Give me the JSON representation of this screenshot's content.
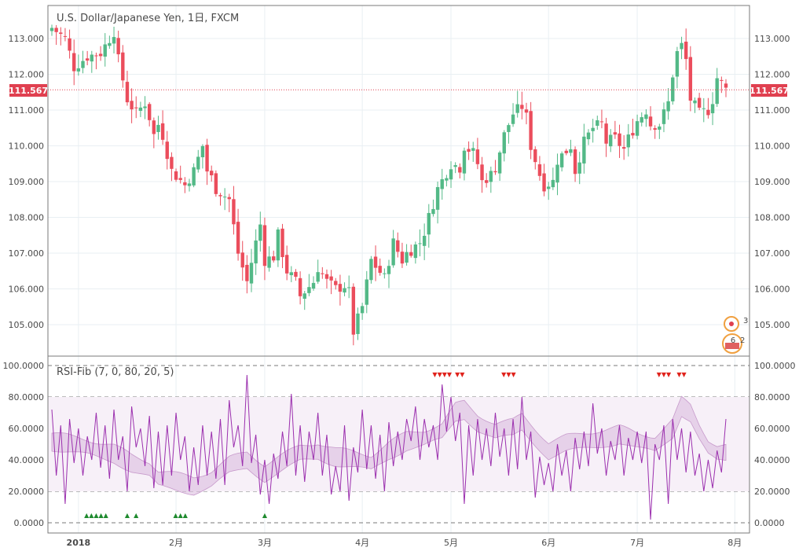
{
  "chart_data": [
    {
      "type": "candlestick",
      "title": "U.S. Dollar/Japanese Yen, 1日, FXCM",
      "last_price": "111.567",
      "last_value": 111.567,
      "y_ticks": [
        {
          "v": 113,
          "label": "113.000"
        },
        {
          "v": 112,
          "label": "112.000"
        },
        {
          "v": 111,
          "label": "111.000"
        },
        {
          "v": 110,
          "label": "110.000"
        },
        {
          "v": 109,
          "label": "109.000"
        },
        {
          "v": 108,
          "label": "108.000"
        },
        {
          "v": 107,
          "label": "107.000"
        },
        {
          "v": 106,
          "label": "106.000"
        },
        {
          "v": 105,
          "label": "105.000"
        }
      ],
      "close_path": [
        [
          0,
          113.3
        ],
        [
          3,
          113.0
        ],
        [
          5,
          112.2
        ],
        [
          8,
          112.5
        ],
        [
          11,
          112.6
        ],
        [
          14,
          113.2
        ],
        [
          15,
          112.4
        ],
        [
          17,
          111.3
        ],
        [
          19,
          110.9
        ],
        [
          21,
          111.2
        ],
        [
          22,
          110.8
        ],
        [
          23,
          110.3
        ],
        [
          24,
          110.6
        ],
        [
          25,
          110.3
        ],
        [
          27,
          109.3
        ],
        [
          30,
          108.9
        ],
        [
          32,
          109.3
        ],
        [
          34,
          110.0
        ],
        [
          35,
          109.3
        ],
        [
          36,
          109.1
        ],
        [
          37,
          108.8
        ],
        [
          40,
          108.5
        ],
        [
          42,
          107.0
        ],
        [
          44,
          106.2
        ],
        [
          46,
          107.3
        ],
        [
          47,
          107.8
        ],
        [
          48,
          106.8
        ],
        [
          50,
          106.9
        ],
        [
          51,
          107.5
        ],
        [
          53,
          106.5
        ],
        [
          55,
          106.2
        ],
        [
          56,
          105.8
        ],
        [
          59,
          106.2
        ],
        [
          60,
          106.6
        ],
        [
          62,
          106.2
        ],
        [
          64,
          106.0
        ],
        [
          66,
          106.1
        ],
        [
          67,
          105.9
        ],
        [
          68,
          104.8
        ],
        [
          70,
          105.5
        ],
        [
          72,
          106.8
        ],
        [
          75,
          106.3
        ],
        [
          77,
          107.3
        ],
        [
          79,
          106.8
        ],
        [
          80,
          107.0
        ],
        [
          83,
          107.3
        ],
        [
          84,
          107.6
        ],
        [
          87,
          108.8
        ],
        [
          90,
          109.5
        ],
        [
          92,
          109.4
        ],
        [
          93,
          110.0
        ],
        [
          95,
          109.8
        ],
        [
          96,
          109.5
        ],
        [
          97,
          109.0
        ],
        [
          99,
          109.2
        ],
        [
          100,
          109.4
        ],
        [
          102,
          110.3
        ],
        [
          104,
          110.9
        ],
        [
          106,
          111.1
        ],
        [
          107,
          110.8
        ],
        [
          108,
          110.0
        ],
        [
          110,
          109.2
        ],
        [
          111,
          108.9
        ],
        [
          113,
          109.0
        ],
        [
          114,
          109.6
        ],
        [
          117,
          110.0
        ],
        [
          118,
          109.3
        ],
        [
          120,
          110.1
        ],
        [
          122,
          110.5
        ],
        [
          124,
          110.6
        ],
        [
          125,
          110.1
        ],
        [
          127,
          110.2
        ],
        [
          129,
          109.9
        ],
        [
          130,
          110.2
        ],
        [
          132,
          110.7
        ],
        [
          134,
          111.0
        ],
        [
          135,
          110.6
        ],
        [
          137,
          110.6
        ],
        [
          139,
          111.2
        ],
        [
          140,
          112.0
        ],
        [
          141,
          112.6
        ],
        [
          142,
          112.8
        ],
        [
          143,
          112.4
        ],
        [
          144,
          111.3
        ],
        [
          146,
          110.9
        ],
        [
          148,
          111.0
        ],
        [
          149,
          111.3
        ],
        [
          150,
          111.9
        ],
        [
          152,
          111.567
        ]
      ],
      "x_ticks": [
        {
          "i": 6,
          "label": "2018"
        },
        {
          "i": 28,
          "label": "2月"
        },
        {
          "i": 48,
          "label": "3月"
        },
        {
          "i": 70,
          "label": "4月"
        },
        {
          "i": 90,
          "label": "5月"
        },
        {
          "i": 112,
          "label": "6月"
        },
        {
          "i": 132,
          "label": "7月"
        },
        {
          "i": 154,
          "label": "8月"
        }
      ],
      "bars": 153
    },
    {
      "type": "line",
      "title": "RSI-Fib (7, 0, 80, 20, 5)",
      "y_ticks": [
        {
          "v": 100,
          "label": "100.0000"
        },
        {
          "v": 80,
          "label": "80.0000"
        },
        {
          "v": 60,
          "label": "60.0000"
        },
        {
          "v": 40,
          "label": "40.0000"
        },
        {
          "v": 20,
          "label": "20.0000"
        },
        {
          "v": 0,
          "label": "0.0000"
        }
      ],
      "levels": [
        100,
        80,
        60,
        40,
        20,
        0
      ],
      "band_center": [
        [
          0,
          52
        ],
        [
          8,
          48
        ],
        [
          14,
          44
        ],
        [
          18,
          38
        ],
        [
          22,
          34
        ],
        [
          24,
          28
        ],
        [
          28,
          26
        ],
        [
          32,
          24
        ],
        [
          36,
          28
        ],
        [
          40,
          36
        ],
        [
          44,
          40
        ],
        [
          48,
          32
        ],
        [
          52,
          38
        ],
        [
          56,
          44
        ],
        [
          60,
          46
        ],
        [
          64,
          42
        ],
        [
          68,
          40
        ],
        [
          72,
          38
        ],
        [
          76,
          46
        ],
        [
          80,
          52
        ],
        [
          84,
          54
        ],
        [
          88,
          58
        ],
        [
          91,
          70
        ],
        [
          93,
          72
        ],
        [
          96,
          64
        ],
        [
          100,
          58
        ],
        [
          104,
          60
        ],
        [
          106,
          64
        ],
        [
          108,
          58
        ],
        [
          112,
          46
        ],
        [
          116,
          50
        ],
        [
          120,
          52
        ],
        [
          124,
          54
        ],
        [
          128,
          56
        ],
        [
          132,
          52
        ],
        [
          136,
          50
        ],
        [
          140,
          60
        ],
        [
          142,
          74
        ],
        [
          144,
          70
        ],
        [
          146,
          58
        ],
        [
          148,
          48
        ],
        [
          150,
          44
        ],
        [
          152,
          44
        ]
      ],
      "band_width": 10,
      "rsi_peaks": [
        [
          0,
          72
        ],
        [
          1,
          30
        ],
        [
          2,
          62
        ],
        [
          3,
          12
        ],
        [
          4,
          66
        ],
        [
          5,
          38
        ],
        [
          6,
          60
        ],
        [
          7,
          30
        ],
        [
          8,
          55
        ],
        [
          9,
          40
        ],
        [
          10,
          70
        ],
        [
          11,
          35
        ],
        [
          12,
          62
        ],
        [
          13,
          28
        ],
        [
          14,
          72
        ],
        [
          15,
          40
        ],
        [
          16,
          55
        ],
        [
          17,
          20
        ],
        [
          18,
          74
        ],
        [
          19,
          48
        ],
        [
          20,
          60
        ],
        [
          21,
          36
        ],
        [
          22,
          68
        ],
        [
          23,
          22
        ],
        [
          24,
          58
        ],
        [
          25,
          24
        ],
        [
          26,
          62
        ],
        [
          27,
          30
        ],
        [
          28,
          70
        ],
        [
          29,
          40
        ],
        [
          30,
          55
        ],
        [
          31,
          20
        ],
        [
          32,
          48
        ],
        [
          33,
          24
        ],
        [
          34,
          62
        ],
        [
          35,
          30
        ],
        [
          36,
          58
        ],
        [
          37,
          28
        ],
        [
          38,
          66
        ],
        [
          39,
          24
        ],
        [
          40,
          78
        ],
        [
          41,
          48
        ],
        [
          42,
          62
        ],
        [
          43,
          36
        ],
        [
          44,
          94
        ],
        [
          45,
          38
        ],
        [
          46,
          56
        ],
        [
          47,
          18
        ],
        [
          48,
          40
        ],
        [
          49,
          12
        ],
        [
          50,
          44
        ],
        [
          51,
          28
        ],
        [
          52,
          58
        ],
        [
          53,
          36
        ],
        [
          54,
          82
        ],
        [
          55,
          30
        ],
        [
          56,
          62
        ],
        [
          57,
          26
        ],
        [
          58,
          58
        ],
        [
          59,
          40
        ],
        [
          60,
          70
        ],
        [
          61,
          30
        ],
        [
          62,
          56
        ],
        [
          63,
          18
        ],
        [
          64,
          36
        ],
        [
          65,
          20
        ],
        [
          66,
          62
        ],
        [
          67,
          14
        ],
        [
          68,
          48
        ],
        [
          69,
          32
        ],
        [
          70,
          72
        ],
        [
          71,
          34
        ],
        [
          72,
          62
        ],
        [
          73,
          28
        ],
        [
          74,
          56
        ],
        [
          75,
          20
        ],
        [
          76,
          64
        ],
        [
          77,
          36
        ],
        [
          78,
          58
        ],
        [
          79,
          40
        ],
        [
          80,
          66
        ],
        [
          81,
          52
        ],
        [
          82,
          74
        ],
        [
          83,
          40
        ],
        [
          84,
          66
        ],
        [
          85,
          48
        ],
        [
          86,
          62
        ],
        [
          87,
          40
        ],
        [
          88,
          88
        ],
        [
          89,
          58
        ],
        [
          90,
          80
        ],
        [
          91,
          52
        ],
        [
          92,
          70
        ],
        [
          93,
          12
        ],
        [
          94,
          62
        ],
        [
          95,
          30
        ],
        [
          96,
          66
        ],
        [
          97,
          40
        ],
        [
          98,
          60
        ],
        [
          99,
          36
        ],
        [
          100,
          70
        ],
        [
          101,
          42
        ],
        [
          102,
          60
        ],
        [
          103,
          30
        ],
        [
          104,
          66
        ],
        [
          105,
          34
        ],
        [
          106,
          80
        ],
        [
          107,
          40
        ],
        [
          108,
          58
        ],
        [
          109,
          16
        ],
        [
          110,
          42
        ],
        [
          111,
          24
        ],
        [
          112,
          38
        ],
        [
          113,
          20
        ],
        [
          114,
          50
        ],
        [
          115,
          30
        ],
        [
          116,
          46
        ],
        [
          117,
          20
        ],
        [
          118,
          54
        ],
        [
          119,
          34
        ],
        [
          120,
          58
        ],
        [
          121,
          36
        ],
        [
          122,
          76
        ],
        [
          123,
          44
        ],
        [
          124,
          60
        ],
        [
          125,
          30
        ],
        [
          126,
          52
        ],
        [
          127,
          40
        ],
        [
          128,
          62
        ],
        [
          129,
          30
        ],
        [
          130,
          54
        ],
        [
          131,
          40
        ],
        [
          132,
          58
        ],
        [
          133,
          38
        ],
        [
          134,
          58
        ],
        [
          135,
          2
        ],
        [
          136,
          50
        ],
        [
          137,
          40
        ],
        [
          138,
          62
        ],
        [
          139,
          12
        ],
        [
          140,
          66
        ],
        [
          141,
          40
        ],
        [
          142,
          60
        ],
        [
          143,
          32
        ],
        [
          144,
          58
        ],
        [
          145,
          30
        ],
        [
          146,
          44
        ],
        [
          147,
          20
        ],
        [
          148,
          40
        ],
        [
          149,
          22
        ],
        [
          150,
          46
        ],
        [
          151,
          32
        ],
        [
          152,
          66
        ]
      ],
      "sell_markers": [
        [
          88,
          "▼▼▼▼"
        ],
        [
          92,
          "▼▼"
        ],
        [
          103,
          "▼▼▼"
        ],
        [
          138,
          "▼▼▼"
        ],
        [
          142,
          "▼▼"
        ]
      ],
      "buy_markers": [
        [
          10,
          "▲▲▲▲▲"
        ],
        [
          17,
          "▲"
        ],
        [
          19,
          "▲"
        ],
        [
          29,
          "▲▲▲"
        ],
        [
          48,
          "▲"
        ]
      ]
    }
  ],
  "colors": {
    "up": "#53b987",
    "down": "#eb4d5c",
    "price_line": "#e04050",
    "rsi_line": "#9b2fae",
    "band": "#d9b8dc",
    "sell_marker": "#e0231c",
    "buy_marker": "#1e8a2e",
    "grid": "#e9eff3",
    "axis_text": "#4a4a4a"
  },
  "badges": {
    "symbol_count": "3",
    "item_a": "6",
    "item_b": "2"
  }
}
